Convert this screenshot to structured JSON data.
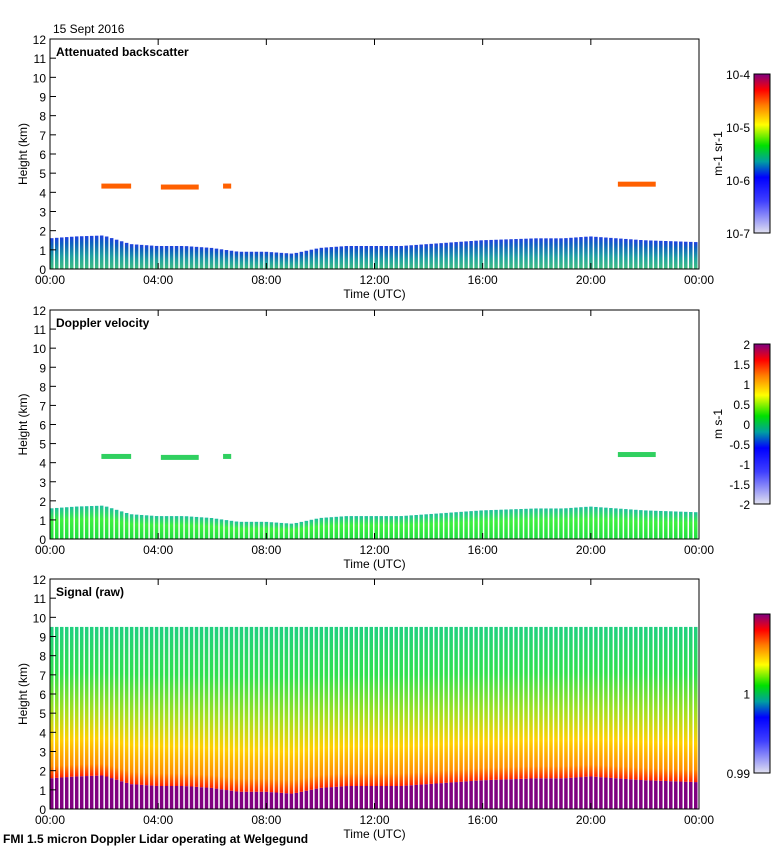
{
  "date_label": "15 Sept 2016",
  "footer": "FMI 1.5 micron Doppler Lidar operating at Welgegund",
  "chart_data": [
    {
      "type": "heatmap",
      "title": "Attenuated backscatter",
      "xlabel": "Time (UTC)",
      "ylabel": "Height (km)",
      "xlim_hours": [
        0,
        24
      ],
      "ylim": [
        0,
        12
      ],
      "x_tick_labels": [
        "00:00",
        "04:00",
        "08:00",
        "12:00",
        "16:00",
        "20:00",
        "00:00"
      ],
      "y_tick_labels": [
        "0",
        "1",
        "2",
        "3",
        "4",
        "5",
        "6",
        "7",
        "8",
        "9",
        "10",
        "11",
        "12"
      ],
      "colorbar": {
        "label": "m-1 sr-1",
        "scale": "log",
        "range": [
          1e-07,
          0.0001
        ],
        "tick_labels": [
          "10-4",
          "10-5",
          "10-6",
          "10-7"
        ]
      },
      "colormap": [
        "#e0e0f0",
        "#2020ff",
        "#00c0c0",
        "#00e000",
        "#ffff00",
        "#ff8000",
        "#ff0000",
        "#800080"
      ]
    },
    {
      "type": "heatmap",
      "title": "Doppler velocity",
      "xlabel": "Time (UTC)",
      "ylabel": "Height (km)",
      "xlim_hours": [
        0,
        24
      ],
      "ylim": [
        0,
        12
      ],
      "x_tick_labels": [
        "00:00",
        "04:00",
        "08:00",
        "12:00",
        "16:00",
        "20:00",
        "00:00"
      ],
      "y_tick_labels": [
        "0",
        "1",
        "2",
        "3",
        "4",
        "5",
        "6",
        "7",
        "8",
        "9",
        "10",
        "11",
        "12"
      ],
      "colorbar": {
        "label": "m s-1",
        "scale": "linear",
        "range": [
          -2,
          2
        ],
        "tick_labels": [
          "2",
          "1.5",
          "1",
          "0.5",
          "0",
          "-0.5",
          "-1",
          "-1.5",
          "-2"
        ]
      }
    },
    {
      "type": "heatmap",
      "title": "Signal (raw)",
      "xlabel": "Time (UTC)",
      "ylabel": "Height (km)",
      "xlim_hours": [
        0,
        24
      ],
      "ylim": [
        0,
        12
      ],
      "x_tick_labels": [
        "00:00",
        "04:00",
        "08:00",
        "12:00",
        "16:00",
        "20:00",
        "00:00"
      ],
      "y_tick_labels": [
        "0",
        "1",
        "2",
        "3",
        "4",
        "5",
        "6",
        "7",
        "8",
        "9",
        "10",
        "11",
        "12"
      ],
      "colorbar": {
        "label": "",
        "scale": "linear",
        "range": [
          0.99,
          1.01
        ],
        "tick_labels": [
          "1",
          "0.99"
        ]
      },
      "signal_top_km": 9.5
    }
  ],
  "boundary_layer": {
    "hours": [
      0,
      1,
      2,
      3,
      4,
      5,
      6,
      7,
      8,
      9,
      10,
      11,
      12,
      13,
      14,
      15,
      16,
      17,
      18,
      19,
      20,
      21,
      22,
      23,
      24
    ],
    "top_km": [
      1.6,
      1.7,
      1.75,
      1.3,
      1.2,
      1.2,
      1.1,
      0.9,
      0.9,
      0.8,
      1.1,
      1.2,
      1.2,
      1.2,
      1.3,
      1.4,
      1.5,
      1.55,
      1.6,
      1.6,
      1.7,
      1.6,
      1.5,
      1.45,
      1.4
    ]
  },
  "elevated_layers": [
    {
      "start_h": 1.9,
      "end_h": 3.0,
      "height_km": 4.3
    },
    {
      "start_h": 4.1,
      "end_h": 5.5,
      "height_km": 4.25
    },
    {
      "start_h": 6.4,
      "end_h": 6.7,
      "height_km": 4.3
    },
    {
      "start_h": 21.0,
      "end_h": 22.4,
      "height_km": 4.4
    }
  ]
}
